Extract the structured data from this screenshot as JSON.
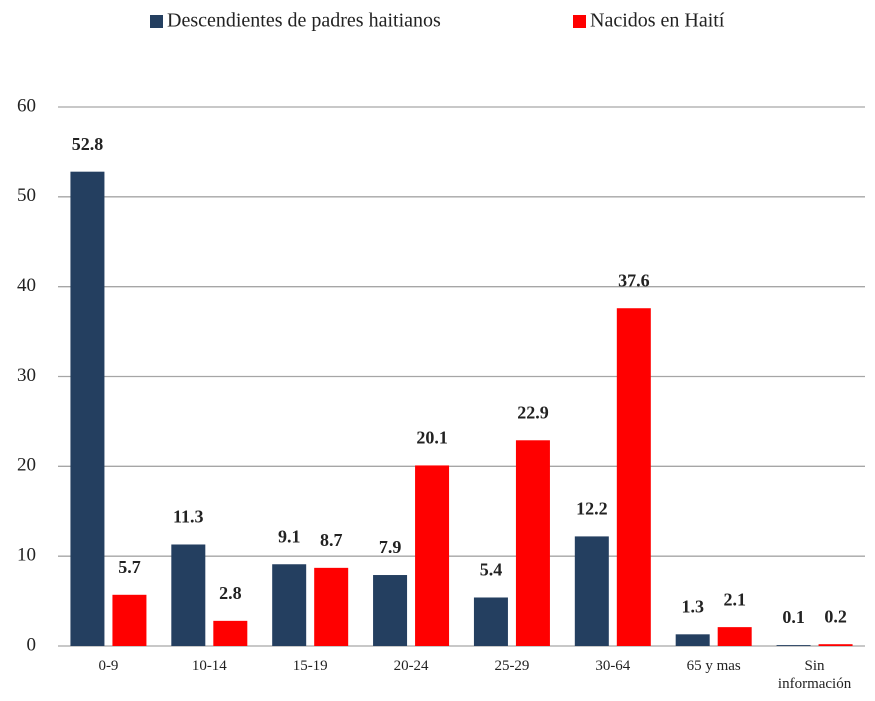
{
  "chart_data": {
    "type": "bar",
    "categories": [
      "0-9",
      "10-14",
      "15-19",
      "20-24",
      "25-29",
      "30-64",
      "65 y mas",
      "Sin información"
    ],
    "series": [
      {
        "name": "Descendientes de padres haitianos",
        "color": "#243f60",
        "values": [
          52.8,
          11.3,
          9.1,
          7.9,
          5.4,
          12.2,
          1.3,
          0.1
        ]
      },
      {
        "name": "Nacidos en Haití",
        "color": "#ff0000",
        "values": [
          5.7,
          2.8,
          8.7,
          20.1,
          22.9,
          37.6,
          2.1,
          0.2
        ]
      }
    ],
    "ylim": [
      0,
      60
    ],
    "yticks": [
      0,
      10,
      20,
      30,
      40,
      50,
      60
    ],
    "grid": true,
    "legend": "top"
  }
}
